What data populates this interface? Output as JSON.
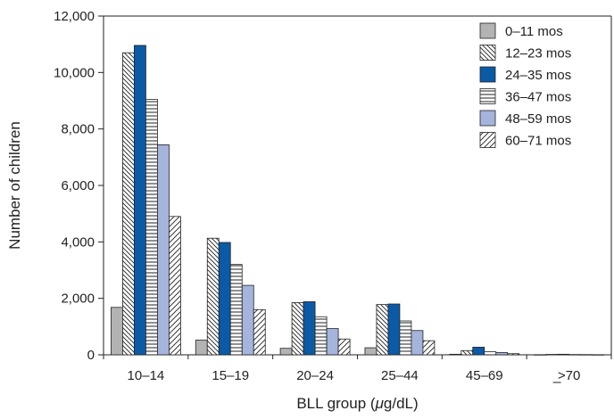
{
  "chart_data": {
    "type": "bar",
    "title": "",
    "xlabel_prefix": "BLL group (",
    "xlabel_unit_mu": "μ",
    "xlabel_suffix": "g/dL)",
    "ylabel": "Number of children",
    "ylim": [
      0,
      12000
    ],
    "yticks": [
      0,
      2000,
      4000,
      6000,
      8000,
      10000,
      12000
    ],
    "ytick_labels": [
      "0",
      "2,000",
      "4,000",
      "6,000",
      "8,000",
      "10,000",
      "12,000"
    ],
    "categories": [
      "10–14",
      "15–19",
      "20–24",
      "25–44",
      "45–69",
      "≥70"
    ],
    "category_display": [
      {
        "prefix": "",
        "text": "10–14"
      },
      {
        "prefix": "",
        "text": "15–19"
      },
      {
        "prefix": "",
        "text": "20–24"
      },
      {
        "prefix": "",
        "text": "25–44"
      },
      {
        "prefix": "",
        "text": "45–69"
      },
      {
        "prefix": "",
        "text": ">70",
        "underline": true
      }
    ],
    "grid": false,
    "legend_position": "top-right",
    "series": [
      {
        "name": "0–11 mos",
        "pattern": "solid-gray",
        "values": [
          1680,
          520,
          230,
          250,
          20,
          5
        ]
      },
      {
        "name": "12–23 mos",
        "pattern": "diag-back",
        "values": [
          10700,
          4130,
          1850,
          1780,
          150,
          15
        ]
      },
      {
        "name": "24–35 mos",
        "pattern": "solid-blue",
        "values": [
          10960,
          3980,
          1880,
          1800,
          270,
          20
        ]
      },
      {
        "name": "36–47 mos",
        "pattern": "horizontal",
        "values": [
          9050,
          3200,
          1350,
          1200,
          110,
          10
        ]
      },
      {
        "name": "48–59 mos",
        "pattern": "solid-lightblue",
        "values": [
          7440,
          2460,
          930,
          860,
          80,
          8
        ]
      },
      {
        "name": "60–71 mos",
        "pattern": "diag-forward",
        "values": [
          4900,
          1600,
          560,
          500,
          40,
          5
        ]
      }
    ],
    "colors": {
      "gray": "#b3b3b3",
      "blue": "#0b5aa6",
      "lightblue": "#a4b4dc",
      "stroke": "#222222"
    }
  }
}
